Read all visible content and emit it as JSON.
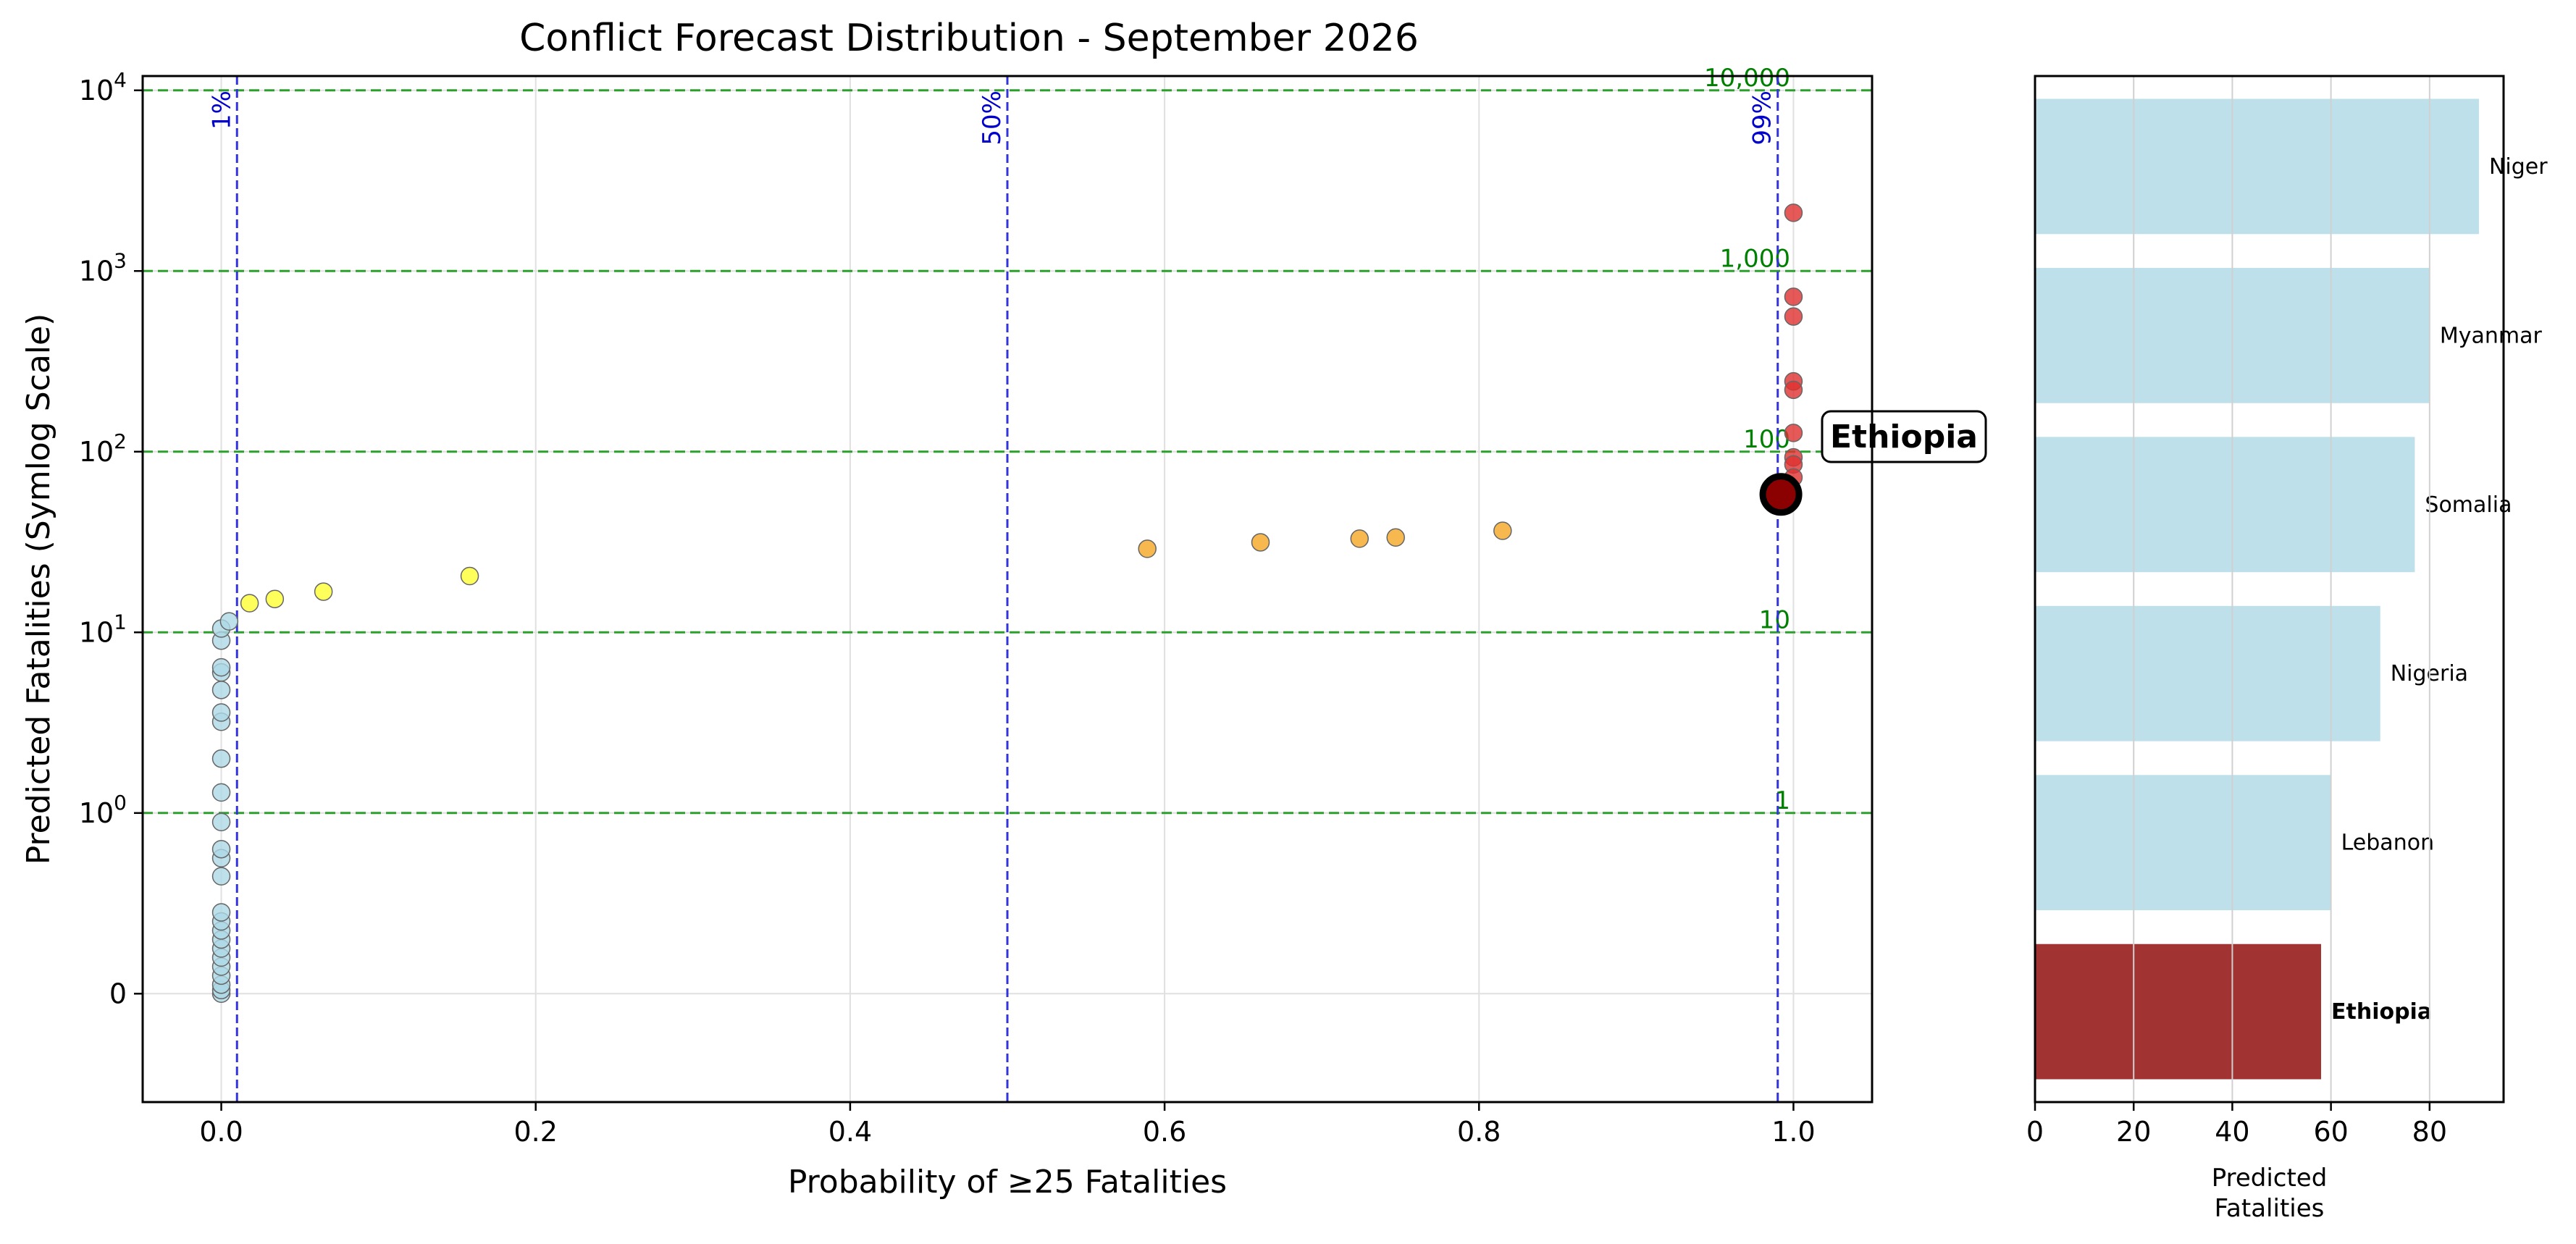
{
  "chart_data": [
    {
      "type": "scatter",
      "title": "Conflict Forecast Distribution - September 2026",
      "xlabel": "Probability of ≥25 Fatalities",
      "ylabel": "Predicted Fatalities (Symlog Scale)",
      "xlim": [
        -0.05,
        1.05
      ],
      "y_scale": "symlog",
      "y_linthresh": 1,
      "ylim": [
        -0.6,
        12000
      ],
      "x_ticks": [
        0.0,
        0.2,
        0.4,
        0.6,
        0.8,
        1.0
      ],
      "x_tick_labels": [
        "0.0",
        "0.2",
        "0.4",
        "0.6",
        "0.8",
        "1.0"
      ],
      "y_ticks": [
        0,
        1,
        10,
        100,
        1000,
        10000
      ],
      "y_tick_labels": [
        {
          "base": "0",
          "exp": ""
        },
        {
          "base": "10",
          "exp": "0"
        },
        {
          "base": "10",
          "exp": "1"
        },
        {
          "base": "10",
          "exp": "2"
        },
        {
          "base": "10",
          "exp": "3"
        },
        {
          "base": "10",
          "exp": "4"
        }
      ],
      "grid": true,
      "threshold_lines": [
        {
          "y": 1,
          "label": "1"
        },
        {
          "y": 10,
          "label": "10"
        },
        {
          "y": 100,
          "label": "100"
        },
        {
          "y": 1000,
          "label": "1,000"
        },
        {
          "y": 10000,
          "label": "10,000"
        }
      ],
      "percentile_lines": [
        {
          "x": 0.01,
          "label": "1%"
        },
        {
          "x": 0.5,
          "label": "50%"
        },
        {
          "x": 0.99,
          "label": "99%"
        }
      ],
      "groups": [
        {
          "color": "#add8e6",
          "points": [
            [
              0,
              0.0
            ],
            [
              0,
              0.02
            ],
            [
              0,
              0.05
            ],
            [
              0,
              0.1
            ],
            [
              0,
              0.15
            ],
            [
              0,
              0.2
            ],
            [
              0,
              0.25
            ],
            [
              0,
              0.3
            ],
            [
              0,
              0.35
            ],
            [
              0,
              0.4
            ],
            [
              0,
              0.45
            ],
            [
              0,
              0.65
            ],
            [
              0,
              0.75
            ],
            [
              0,
              0.8
            ],
            [
              0,
              0.95
            ],
            [
              0,
              1.3
            ],
            [
              0,
              2.0
            ],
            [
              0,
              3.2
            ],
            [
              0,
              3.6
            ],
            [
              0,
              4.8
            ],
            [
              0,
              6.0
            ],
            [
              0,
              6.4
            ],
            [
              0,
              9.0
            ],
            [
              0,
              10.5
            ],
            [
              0.005,
              11.5
            ]
          ]
        },
        {
          "color": "#ffff33",
          "points": [
            [
              0.018,
              14.5
            ],
            [
              0.034,
              15.3
            ],
            [
              0.065,
              16.8
            ],
            [
              0.158,
              20.5
            ]
          ]
        },
        {
          "color": "#f5a623",
          "points": [
            [
              0.589,
              29
            ],
            [
              0.661,
              31.5
            ],
            [
              0.724,
              33
            ],
            [
              0.747,
              33.5
            ],
            [
              0.815,
              36.5
            ]
          ]
        },
        {
          "color": "#e03030",
          "points": [
            [
              1.0,
              2100
            ],
            [
              1.0,
              720
            ],
            [
              1.0,
              560
            ],
            [
              1.0,
              245
            ],
            [
              1.0,
              220
            ],
            [
              1.0,
              127
            ],
            [
              1.0,
              93
            ],
            [
              1.0,
              85
            ],
            [
              1.0,
              72
            ]
          ]
        }
      ],
      "highlight": {
        "label": "Ethiopia",
        "x": 0.992,
        "y": 58
      }
    },
    {
      "type": "bar",
      "orientation": "horizontal",
      "xlabel_lines": [
        "Predicted",
        "Fatalities"
      ],
      "xlim": [
        0,
        95
      ],
      "x_ticks": [
        0,
        20,
        40,
        60,
        80
      ],
      "x_tick_labels": [
        "0",
        "20",
        "40",
        "60",
        "80"
      ],
      "grid": true,
      "categories": [
        "Niger",
        "Myanmar",
        "Somalia",
        "Nigeria",
        "Lebanon",
        "Ethiopia"
      ],
      "values": [
        90,
        80,
        77,
        70,
        60,
        58
      ],
      "highlight": "Ethiopia",
      "colors": {
        "default": "#add8e6",
        "highlight": "#8b0000"
      }
    }
  ]
}
